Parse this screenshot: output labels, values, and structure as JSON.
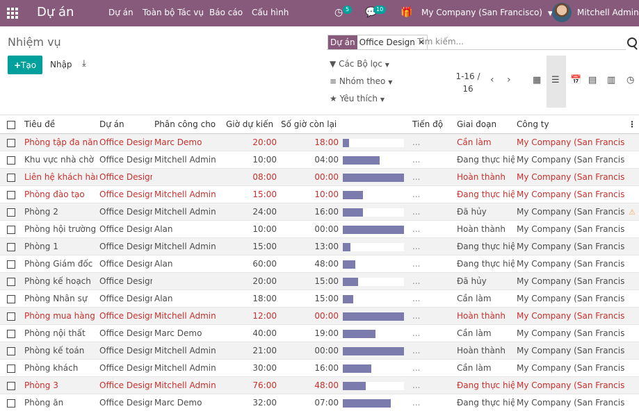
{
  "navbar": {
    "apps_icon": "grid-icon",
    "brand": "Dự án",
    "menu": [
      "Dự án",
      "Toàn bộ Tác vụ",
      "Báo cáo",
      "Cấu hình"
    ],
    "activity_badge": "5",
    "messages_badge": "10",
    "company": "My Company (San Francisco)",
    "user": "Mitchell Admin"
  },
  "control": {
    "breadcrumb": "Nhiệm vụ",
    "create_label": "Tạo",
    "import_label": "Nhập",
    "filters_label": "Các Bộ lọc",
    "groupby_label": "Nhóm theo",
    "favorites_label": "Yêu thích",
    "pager_value": "1-16 / 16",
    "search": {
      "facet_label": "Dự án",
      "facet_value": "Office Design",
      "placeholder": "Tìm kiếm..."
    }
  },
  "colors": {
    "brand": "#875a7b",
    "accent": "#00a09d",
    "overdue": "#c9302c",
    "progress": "#7c7bad"
  },
  "table": {
    "headers": [
      "Tiêu đề",
      "Dự án",
      "Phân công cho",
      "Giờ dự kiến",
      "Số giờ còn lại",
      "Tiến độ",
      "Giai đoạn",
      "Công ty"
    ],
    "rows": [
      {
        "title": "Phòng tập đa năng",
        "project": "Office Design",
        "assignee": "Marc Demo",
        "planned": "20:00",
        "remaining": "18:00",
        "progress": 0.1,
        "stage": "Cần làm",
        "company": "My Company (San Francisco)",
        "overdue": true,
        "warning": false
      },
      {
        "title": "Khu vực nhà chờ",
        "project": "Office Design",
        "assignee": "Mitchell Admin",
        "planned": "10:00",
        "remaining": "04:00",
        "progress": 0.6,
        "stage": "Đang thực hiện",
        "company": "My Company (San Francisco)",
        "overdue": false,
        "warning": false
      },
      {
        "title": "Liên hệ khách hàng",
        "project": "Office Design",
        "assignee": "",
        "planned": "08:00",
        "remaining": "00:00",
        "progress": 1.0,
        "stage": "Hoàn thành",
        "company": "My Company (San Francisco)",
        "overdue": true,
        "warning": false
      },
      {
        "title": "Phòng đào tạo",
        "project": "Office Design",
        "assignee": "Mitchell Admin",
        "planned": "15:00",
        "remaining": "10:00",
        "progress": 0.33,
        "stage": "Đang thực hiện",
        "company": "My Company (San Francisco)",
        "overdue": true,
        "warning": false
      },
      {
        "title": "Phòng 2",
        "project": "Office Design",
        "assignee": "Mitchell Admin",
        "planned": "24:00",
        "remaining": "16:00",
        "progress": 0.33,
        "stage": "Đã hủy",
        "company": "My Company (San Francisco)",
        "overdue": false,
        "warning": true
      },
      {
        "title": "Phòng hội trường",
        "project": "Office Design",
        "assignee": "Alan",
        "planned": "10:00",
        "remaining": "00:00",
        "progress": 1.0,
        "stage": "Hoàn thành",
        "company": "My Company (San Francisco)",
        "overdue": false,
        "warning": false
      },
      {
        "title": "Phòng 1",
        "project": "Office Design",
        "assignee": "Mitchell Admin",
        "planned": "15:00",
        "remaining": "13:00",
        "progress": 0.13,
        "stage": "Đang thực hiện",
        "company": "My Company (San Francisco)",
        "overdue": false,
        "warning": false
      },
      {
        "title": "Phòng Giám đốc",
        "project": "Office Design",
        "assignee": "Alan",
        "planned": "60:00",
        "remaining": "48:00",
        "progress": 0.2,
        "stage": "Đang thực hiện",
        "company": "My Company (San Francisco)",
        "overdue": false,
        "warning": false
      },
      {
        "title": "Phòng kế hoạch",
        "project": "Office Design",
        "assignee": "",
        "planned": "20:00",
        "remaining": "15:00",
        "progress": 0.25,
        "stage": "Đã hủy",
        "company": "My Company (San Francisco)",
        "overdue": false,
        "warning": false
      },
      {
        "title": "Phòng Nhân sự",
        "project": "Office Design",
        "assignee": "Alan",
        "planned": "18:00",
        "remaining": "15:00",
        "progress": 0.17,
        "stage": "Cần làm",
        "company": "My Company (San Francisco)",
        "overdue": false,
        "warning": false
      },
      {
        "title": "Phòng mua hàng",
        "project": "Office Design",
        "assignee": "Mitchell Admin",
        "planned": "12:00",
        "remaining": "00:00",
        "progress": 1.0,
        "stage": "Hoàn thành",
        "company": "My Company (San Francisco)",
        "overdue": true,
        "warning": false
      },
      {
        "title": "Phòng nội thất",
        "project": "Office Design",
        "assignee": "Marc Demo",
        "planned": "40:00",
        "remaining": "19:00",
        "progress": 0.53,
        "stage": "Cần làm",
        "company": "My Company (San Francisco)",
        "overdue": false,
        "warning": false
      },
      {
        "title": "Phòng kế toán",
        "project": "Office Design",
        "assignee": "Mitchell Admin",
        "planned": "21:00",
        "remaining": "00:00",
        "progress": 1.0,
        "stage": "Hoàn thành",
        "company": "My Company (San Francisco)",
        "overdue": false,
        "warning": false
      },
      {
        "title": "Phòng khách",
        "project": "Office Design",
        "assignee": "Mitchell Admin",
        "planned": "30:00",
        "remaining": "16:00",
        "progress": 0.47,
        "stage": "Cần làm",
        "company": "My Company (San Francisco)",
        "overdue": false,
        "warning": false
      },
      {
        "title": "Phòng 3",
        "project": "Office Design",
        "assignee": "Mitchell Admin",
        "planned": "76:00",
        "remaining": "48:00",
        "progress": 0.37,
        "stage": "Đang thực hiện",
        "company": "My Company (San Francisco)",
        "overdue": true,
        "warning": false
      },
      {
        "title": "Phòng ăn",
        "project": "Office Design",
        "assignee": "Marc Demo",
        "planned": "32:00",
        "remaining": "07:00",
        "progress": 0.78,
        "stage": "Đang thực hiện",
        "company": "My Company (San Francisco)",
        "overdue": false,
        "warning": false
      }
    ]
  }
}
